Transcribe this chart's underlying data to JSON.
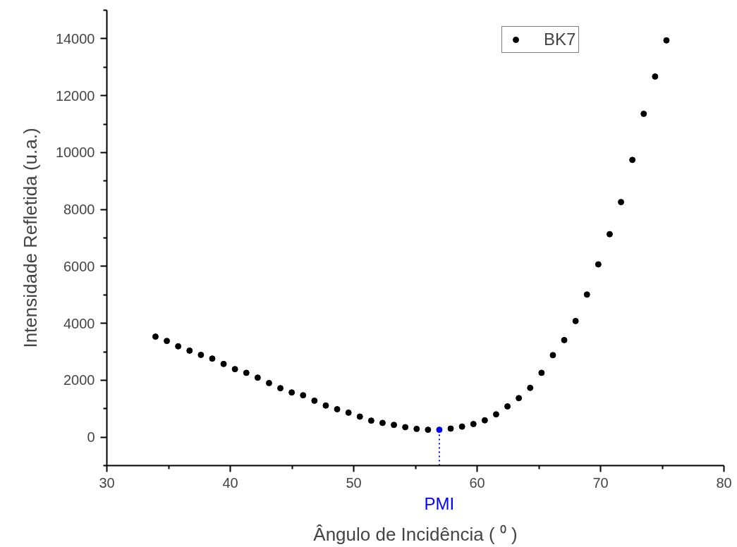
{
  "chart_data": {
    "type": "scatter",
    "xlabel": "Ângulo de Incidência ( ⁰ )",
    "ylabel": "Intensidade Refletida (u.a.)",
    "xlim": [
      30,
      80
    ],
    "xticks": [
      30,
      {
        "value": 35,
        "label": null
      },
      40,
      {
        "value": 45,
        "label": null
      },
      50,
      {
        "value": 55,
        "label": null
      },
      60,
      {
        "value": 65,
        "label": null
      },
      70,
      {
        "value": 75,
        "label": null
      },
      80
    ],
    "ylim": [
      -1000,
      15000
    ],
    "yticks": [
      {
        "value": -1000,
        "label": null
      },
      0,
      {
        "value": 1000,
        "label": null
      },
      2000,
      {
        "value": 3000,
        "label": null
      },
      4000,
      {
        "value": 5000,
        "label": null
      },
      6000,
      {
        "value": 7000,
        "label": null
      },
      8000,
      {
        "value": 9000,
        "label": null
      },
      10000,
      {
        "value": 11000,
        "label": null
      },
      12000,
      {
        "value": 13000,
        "label": null
      },
      14000,
      {
        "value": 15000,
        "label": null
      }
    ],
    "grid": false,
    "legend": "top right",
    "marker": "circle",
    "series": [
      {
        "name": "BK7",
        "color": "#000000",
        "x": [
          33.94,
          34.86,
          35.78,
          36.7,
          37.62,
          38.54,
          39.46,
          40.38,
          41.3,
          42.22,
          43.14,
          44.06,
          44.98,
          45.9,
          46.82,
          47.74,
          48.66,
          49.58,
          50.5,
          51.42,
          52.34,
          53.26,
          54.18,
          55.1,
          56.02,
          56.94,
          57.86,
          58.78,
          59.7,
          60.62,
          61.54,
          62.46,
          63.38,
          64.3,
          65.22,
          66.14,
          67.06,
          67.98,
          68.9,
          69.82,
          70.74,
          71.66,
          72.58,
          73.5,
          74.42,
          75.34
        ],
        "values": [
          3530,
          3380,
          3190,
          3040,
          2890,
          2760,
          2570,
          2390,
          2260,
          2090,
          1900,
          1720,
          1570,
          1470,
          1280,
          1110,
          980,
          860,
          720,
          580,
          500,
          430,
          350,
          290,
          260,
          260,
          300,
          370,
          460,
          590,
          800,
          1080,
          1370,
          1730,
          2260,
          2880,
          3410,
          4080,
          5010,
          6070,
          7130,
          8260,
          9740,
          11360,
          12670,
          13940
        ],
        "colors": [
          "#000000",
          "#000000",
          "#000000",
          "#000000",
          "#000000",
          "#000000",
          "#000000",
          "#000000",
          "#000000",
          "#000000",
          "#000000",
          "#000000",
          "#000000",
          "#000000",
          "#000000",
          "#000000",
          "#000000",
          "#000000",
          "#000000",
          "#000000",
          "#000000",
          "#000000",
          "#000000",
          "#000000",
          "#000000",
          "#0000ff",
          "#000000",
          "#000000",
          "#000000",
          "#000000",
          "#000000",
          "#000000",
          "#000000",
          "#000000",
          "#000000",
          "#000000",
          "#000000",
          "#000000",
          "#000000",
          "#000000",
          "#000000",
          "#000000",
          "#000000",
          "#000000",
          "#000000",
          "#000000"
        ]
      },
      {
        "type": "line",
        "color": "#0000ff",
        "line_style": "dotted",
        "marker": "none",
        "x": [
          56.94,
          56.94
        ],
        "values": [
          -1000,
          260
        ]
      }
    ],
    "annotations": [
      {
        "text": "PMI",
        "x": 56.94,
        "y": -1000
      }
    ]
  }
}
